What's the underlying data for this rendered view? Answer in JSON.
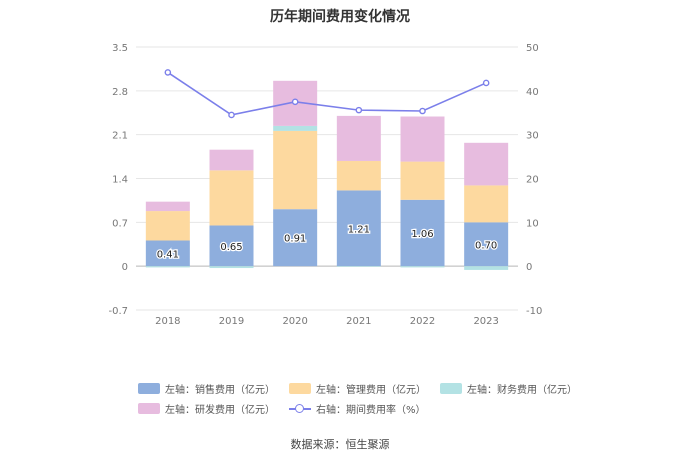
{
  "chart_data": {
    "type": "bar",
    "title": "历年期间费用变化情况",
    "categories": [
      "2018",
      "2019",
      "2020",
      "2021",
      "2022",
      "2023"
    ],
    "left_axis": {
      "ticks": [
        "-0.7",
        "0",
        "0.7",
        "1.4",
        "2.1",
        "2.8",
        "3.5"
      ],
      "ylim": [
        -0.7,
        3.5
      ]
    },
    "right_axis": {
      "ticks": [
        "-10",
        "0",
        "10",
        "20",
        "30",
        "40",
        "50"
      ],
      "ylim": [
        -10,
        50
      ]
    },
    "series": [
      {
        "name": "左轴：销售费用（亿元）",
        "type": "bar",
        "axis": "left",
        "color": "#8eaedd",
        "values": [
          0.41,
          0.65,
          0.91,
          1.21,
          1.06,
          0.7
        ],
        "labels": [
          "0.41",
          "0.65",
          "0.91",
          "1.21",
          "1.06",
          "0.70"
        ]
      },
      {
        "name": "左轴：管理费用（亿元）",
        "type": "bar",
        "axis": "left",
        "color": "#fdd99f",
        "values": [
          0.47,
          0.88,
          1.25,
          0.47,
          0.61,
          0.59
        ]
      },
      {
        "name": "左轴：财务费用（亿元）",
        "type": "bar",
        "axis": "left",
        "color": "#b3e2e4",
        "values": [
          -0.02,
          -0.03,
          0.08,
          -0.01,
          -0.02,
          -0.06
        ]
      },
      {
        "name": "左轴：研发费用（亿元）",
        "type": "bar",
        "axis": "left",
        "color": "#e7bcdf",
        "values": [
          0.15,
          0.33,
          0.72,
          0.72,
          0.72,
          0.68
        ]
      },
      {
        "name": "右轴：期间费用率（%）",
        "type": "line",
        "axis": "right",
        "color": "#7b7fea",
        "values": [
          44.2,
          34.5,
          37.5,
          35.6,
          35.4,
          41.8
        ]
      }
    ],
    "grid": true,
    "legend_position": "bottom"
  },
  "source_text": "数据来源：恒生聚源"
}
